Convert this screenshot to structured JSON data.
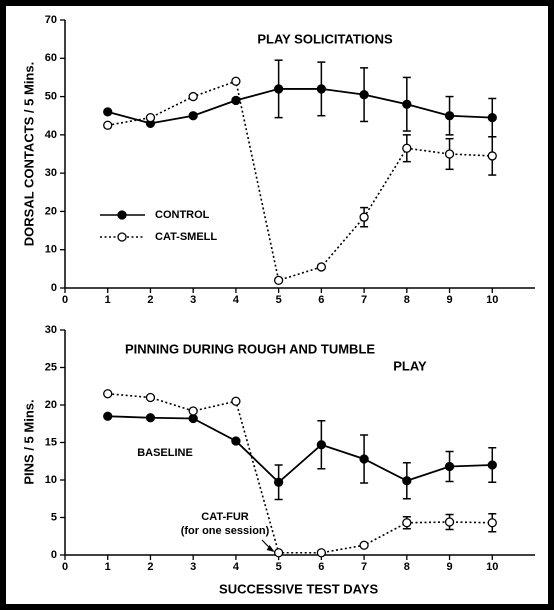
{
  "chart_data": [
    {
      "type": "line",
      "title": "PLAY SOLICITATIONS",
      "y_label": "DORSAL CONTACTS / 5 Mins.",
      "x": [
        1,
        2,
        3,
        4,
        5,
        6,
        7,
        8,
        9,
        10
      ],
      "xlim": [
        0,
        11
      ],
      "xticks": [
        0,
        1,
        2,
        3,
        4,
        5,
        6,
        7,
        8,
        9,
        10
      ],
      "ylim": [
        0,
        70
      ],
      "yticks": [
        0,
        10,
        20,
        30,
        40,
        50,
        60,
        70
      ],
      "legend": "center left",
      "series": [
        {
          "name": "CONTROL",
          "color": "#000000",
          "marker_fill": "filled",
          "linestyle": "solid",
          "values": [
            46,
            43,
            45,
            49,
            52,
            52,
            50.5,
            48,
            45,
            44.5
          ],
          "errors": [
            null,
            null,
            null,
            null,
            7.5,
            7,
            7,
            7,
            5,
            5
          ]
        },
        {
          "name": "CAT-SMELL",
          "color": "#000000",
          "marker_fill": "open",
          "linestyle": "dotted",
          "values": [
            42.5,
            44.5,
            50,
            54,
            2,
            5.5,
            18.5,
            36.5,
            35,
            34.5
          ],
          "errors": [
            null,
            null,
            null,
            null,
            null,
            null,
            2.5,
            3.5,
            4,
            5
          ]
        }
      ]
    },
    {
      "type": "line",
      "title": "PINNING DURING ROUGH AND TUMBLE",
      "subtitle": "PLAY",
      "y_label": "PINS / 5 Mins.",
      "x_label": "SUCCESSIVE TEST DAYS",
      "x": [
        1,
        2,
        3,
        4,
        5,
        6,
        7,
        8,
        9,
        10
      ],
      "xlim": [
        0,
        11
      ],
      "xticks": [
        0,
        1,
        2,
        3,
        4,
        5,
        6,
        7,
        8,
        9,
        10
      ],
      "ylim": [
        0,
        30
      ],
      "yticks": [
        0,
        5,
        10,
        15,
        20,
        25,
        30
      ],
      "annotations": [
        "BASELINE",
        "CAT-FUR",
        "(for one session)"
      ],
      "series": [
        {
          "color": "#000000",
          "marker_fill": "filled",
          "linestyle": "solid",
          "values": [
            18.5,
            18.3,
            18.2,
            15.2,
            9.7,
            14.7,
            12.8,
            9.9,
            11.8,
            12
          ],
          "errors": [
            null,
            null,
            null,
            null,
            2.3,
            3.2,
            3.2,
            2.4,
            2,
            2.3
          ]
        },
        {
          "color": "#000000",
          "marker_fill": "open",
          "linestyle": "dotted",
          "values": [
            21.5,
            21,
            19.2,
            20.5,
            0.3,
            0.3,
            1.3,
            4.3,
            4.4,
            4.3
          ],
          "errors": [
            null,
            null,
            null,
            null,
            null,
            null,
            null,
            0.8,
            1,
            1.2
          ]
        }
      ]
    }
  ]
}
